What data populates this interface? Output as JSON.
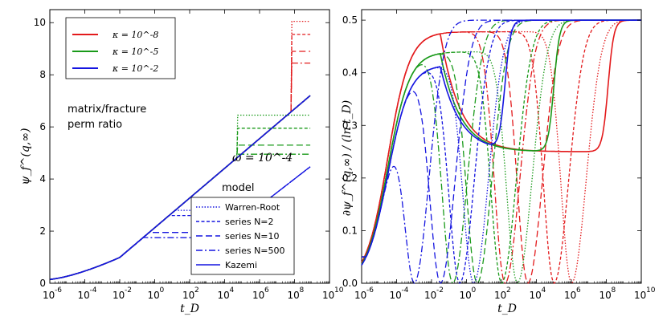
{
  "chart_data": [
    {
      "type": "line",
      "panel": "left",
      "xscale": "log",
      "xlim_exp": [
        -6,
        10
      ],
      "ylim": [
        0,
        10.5
      ],
      "yticks": [
        0,
        2,
        4,
        6,
        8,
        10
      ],
      "ylabel": "ψ_f^(q,∞)",
      "xlabel": "t_D",
      "annotations": {
        "perm_line1": "matrix/fracture",
        "perm_line2": "perm ratio",
        "omega": "ω = 10^-4",
        "model": "model"
      },
      "kappa_legend": [
        {
          "label": "κ = 10^-8",
          "color": "#e31a1c"
        },
        {
          "label": "κ = 10^-5",
          "color": "#1a9a1a"
        },
        {
          "label": "κ = 10^-2",
          "color": "#1515e0"
        }
      ],
      "model_legend": [
        {
          "label": "Warren-Root",
          "style": "dotted"
        },
        {
          "label": "series N=2",
          "style": "dash-short"
        },
        {
          "label": "series N=10",
          "style": "dash-long"
        },
        {
          "label": "series N=500",
          "style": "dashdot"
        },
        {
          "label": "Kazemi",
          "style": "solid"
        }
      ],
      "plateaus": [
        {
          "color": "#e31a1c",
          "kazemi_start": 9.7,
          "t_exit_exp": 7.4,
          "dotted": 10.05,
          "n2": 9.55,
          "n10": 8.9,
          "n500": 8.45
        },
        {
          "color": "#1a9a1a",
          "kazemi_start": 6.6,
          "t_exit_exp": 4.3,
          "dotted": 6.45,
          "n2": 5.95,
          "n10": 5.3,
          "n500": 4.95
        },
        {
          "color": "#1515e0",
          "kazemi_start": 3.4,
          "t_exit_exp": 1.3,
          "dotted": 2.8,
          "n2": 2.6,
          "n10": 1.95,
          "n500": 1.75
        }
      ]
    },
    {
      "type": "line",
      "panel": "right",
      "xscale": "log",
      "xlim_exp": [
        -6,
        10
      ],
      "ylim": [
        0,
        0.52
      ],
      "yticks": [
        0.0,
        0.1,
        0.2,
        0.3,
        0.4,
        0.5
      ],
      "ylabel": "∂ψ_f^(q,∞) / (ln t_D)",
      "xlabel": "t_D",
      "derivative_curves": [
        {
          "color": "#e31a1c",
          "final_rise_exp": 8.1,
          "dip_exps": [
            6.0,
            5.0,
            3.5,
            2.2
          ],
          "peak": 0.478
        },
        {
          "color": "#1a9a1a",
          "final_rise_exp": 5.0,
          "dip_exps": [
            2.9,
            2.0,
            0.6,
            -0.8
          ],
          "peak": 0.44
        },
        {
          "color": "#1515e0",
          "final_rise_exp": 2.2,
          "dip_exps": [
            0.4,
            -0.4,
            -1.5,
            -3.0
          ],
          "peak": 0.415
        }
      ]
    }
  ]
}
